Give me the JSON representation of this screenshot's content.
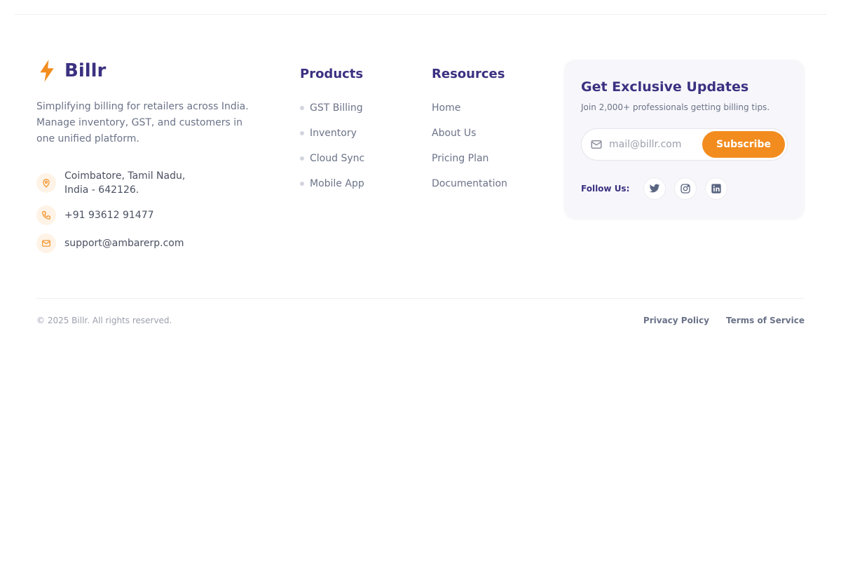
{
  "brand": {
    "name": "Billr",
    "accent": "#f28c1f",
    "primary": "#3b3181"
  },
  "description": "Simplifying billing for retailers across India. Manage inventory, GST, and customers in one unified platform.",
  "contact": {
    "address_line1": "Coimbatore, Tamil Nadu,",
    "address_line2": "India - 642126.",
    "phone": "+91 93612 91477",
    "email": "support@ambarerp.com"
  },
  "products": {
    "title": "Products",
    "items": [
      "GST Billing",
      "Inventory",
      "Cloud Sync",
      "Mobile App"
    ]
  },
  "resources": {
    "title": "Resources",
    "items": [
      "Home",
      "About Us",
      "Pricing Plan",
      "Documentation"
    ]
  },
  "newsletter": {
    "title": "Get Exclusive Updates",
    "subtitle": "Join 2,000+ professionals getting billing tips.",
    "placeholder": "mail@billr.com",
    "button": "Subscribe",
    "follow_label": "Follow Us:",
    "socials": [
      "twitter-icon",
      "instagram-icon",
      "linkedin-icon"
    ]
  },
  "footer": {
    "copyright": "© 2025 Billr. All rights reserved.",
    "privacy": "Privacy Policy",
    "terms": "Terms of Service"
  }
}
